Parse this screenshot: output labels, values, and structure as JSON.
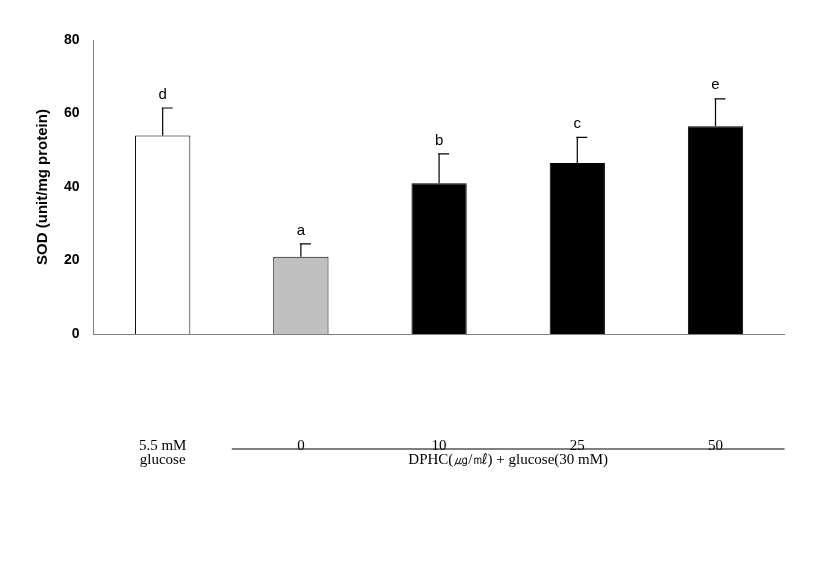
{
  "chart_data": {
    "type": "bar",
    "y_label": "SOD (unit/mg protein)",
    "categories": [
      "5.5 mM",
      "0",
      "10",
      "25",
      "50"
    ],
    "values": [
      54,
      21,
      41,
      46.5,
      56.5
    ],
    "errors": [
      7.5,
      3.5,
      8,
      7,
      7.5
    ],
    "significance_labels": [
      "d",
      "a",
      "b",
      "c",
      "e"
    ],
    "colors": [
      "#ffffff",
      "#c0c0c0",
      "#000000",
      "#000000",
      "#000000"
    ],
    "groups": [
      {
        "label": "glucose",
        "categories": [
          "5.5 mM"
        ]
      },
      {
        "label": "DPHC(㎍/㎖) + glucose(30 mM)",
        "categories": [
          "0",
          "10",
          "25",
          "50"
        ]
      }
    ],
    "ylim": [
      0,
      80
    ],
    "yticks": [
      0,
      20,
      40,
      60,
      80
    ],
    "grid": false
  }
}
